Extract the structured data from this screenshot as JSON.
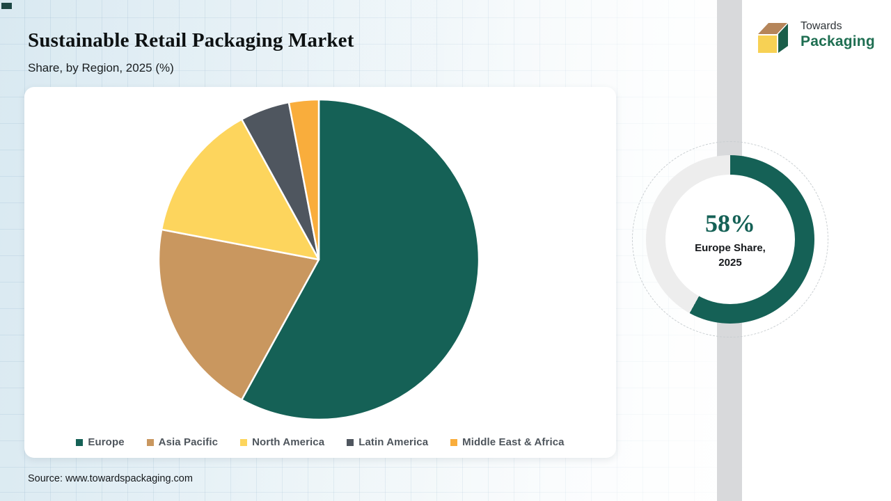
{
  "header": {
    "title": "Sustainable Retail Packaging Market",
    "subtitle": "Share, by Region, 2025 (%)"
  },
  "logo": {
    "line1": "Towards",
    "line2": "Packaging"
  },
  "chart_data": {
    "type": "pie",
    "title": "Sustainable Retail Packaging Market",
    "subtitle": "Share, by Region, 2025 (%)",
    "categories": [
      "Europe",
      "Asia Pacific",
      "North America",
      "Latin America",
      "Middle East & Africa"
    ],
    "values": [
      58,
      20,
      14,
      5,
      3
    ],
    "colors": [
      "#156156",
      "#c9975f",
      "#fdd55d",
      "#4f565f",
      "#f9ad3c"
    ],
    "unit": "%",
    "start_angle_deg": 0,
    "direction": "clockwise",
    "legend_position": "bottom"
  },
  "donut": {
    "value": 58,
    "value_label": "58%",
    "label_line1": "Europe Share,",
    "label_line2": "2025",
    "color": "#156156",
    "track_color": "#ededed"
  },
  "source": {
    "text": "Source: www.towardspackaging.com"
  },
  "colors": {
    "accent_green": "#156156",
    "logo_green": "#1e6e51",
    "strip_gray": "#d8d9db",
    "background_blue": "#d9e9f1"
  }
}
